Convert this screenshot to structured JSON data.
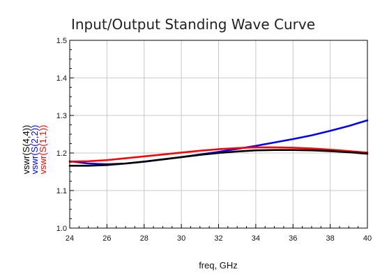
{
  "chart_data": {
    "type": "line",
    "title": "Input/Output Standing Wave Curve",
    "xlabel": "freq, GHz",
    "xlim": [
      24,
      40
    ],
    "ylim": [
      1.0,
      1.5
    ],
    "x_ticks": [
      24,
      26,
      28,
      30,
      32,
      34,
      36,
      38,
      40
    ],
    "x_tick_labels": [
      "24",
      "26",
      "28",
      "30",
      "32",
      "34",
      "36",
      "38",
      "40"
    ],
    "y_ticks": [
      1.0,
      1.1,
      1.2,
      1.3,
      1.4,
      1.5
    ],
    "y_tick_labels": [
      "1.0",
      "1.1",
      "1.2",
      "1.3",
      "1.4",
      "1.5"
    ],
    "grid": true,
    "x": [
      24,
      25,
      26,
      27,
      28,
      29,
      30,
      31,
      32,
      33,
      34,
      35,
      36,
      37,
      38,
      39,
      40
    ],
    "series": [
      {
        "name": "vswr(S(4,4))",
        "color": "#000000",
        "values": [
          1.166,
          1.166,
          1.168,
          1.172,
          1.177,
          1.183,
          1.189,
          1.195,
          1.2,
          1.204,
          1.207,
          1.208,
          1.208,
          1.207,
          1.205,
          1.202,
          1.198
        ]
      },
      {
        "name": "vswr(S(2,2))",
        "color": "#0000ff",
        "values": [
          1.178,
          1.172,
          1.17,
          1.172,
          1.177,
          1.183,
          1.189,
          1.196,
          1.203,
          1.211,
          1.219,
          1.228,
          1.237,
          1.247,
          1.259,
          1.272,
          1.287
        ]
      },
      {
        "name": "vswr(S(1,1))",
        "color": "#ff0000",
        "values": [
          1.177,
          1.178,
          1.181,
          1.186,
          1.191,
          1.196,
          1.201,
          1.206,
          1.21,
          1.213,
          1.215,
          1.215,
          1.214,
          1.212,
          1.209,
          1.205,
          1.201
        ]
      }
    ]
  }
}
